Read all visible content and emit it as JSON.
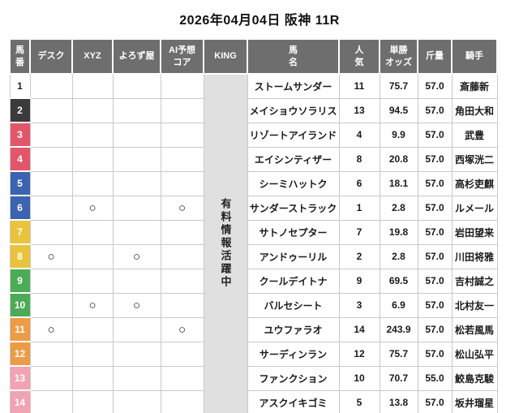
{
  "title": "2026年04月04日 阪神 11R",
  "colors": {
    "header_bg": "#6e6e6e",
    "king_bg": "#e0e0e0",
    "border": "#c9c9c9",
    "bracket": {
      "white": "#ffffff",
      "black": "#3b3b3b",
      "red": "#e2566a",
      "blue": "#3c63b1",
      "yellow": "#e9c33e",
      "green": "#4cab55",
      "orange": "#ec9c47",
      "pink": "#f1a3b2"
    }
  },
  "table": {
    "headers": [
      "馬\n番",
      "デスク",
      "XYZ",
      "よろず屋",
      "AI予想\nコア",
      "KING",
      "馬\n名",
      "人\n気",
      "単勝\nオッズ",
      "斤量",
      "騎手"
    ],
    "king_banner": "有料情報活躍中",
    "rows": [
      {
        "num": "1",
        "bracket": "white",
        "marks": {
          "desk": "",
          "xyz": "",
          "yorozuya": "",
          "ai": ""
        },
        "name": "ストームサンダー",
        "popularity": "11",
        "odds": "75.7",
        "weight": "57.0",
        "jockey": "斎藤新"
      },
      {
        "num": "2",
        "bracket": "black",
        "marks": {
          "desk": "",
          "xyz": "",
          "yorozuya": "",
          "ai": ""
        },
        "name": "メイショウソラリス",
        "popularity": "13",
        "odds": "94.5",
        "weight": "57.0",
        "jockey": "角田大和"
      },
      {
        "num": "3",
        "bracket": "red",
        "marks": {
          "desk": "",
          "xyz": "",
          "yorozuya": "",
          "ai": ""
        },
        "name": "リゾートアイランド",
        "popularity": "4",
        "odds": "9.9",
        "weight": "57.0",
        "jockey": "武豊"
      },
      {
        "num": "4",
        "bracket": "red",
        "marks": {
          "desk": "",
          "xyz": "",
          "yorozuya": "",
          "ai": ""
        },
        "name": "エイシンティザー",
        "popularity": "8",
        "odds": "20.8",
        "weight": "57.0",
        "jockey": "西塚洸二"
      },
      {
        "num": "5",
        "bracket": "blue",
        "marks": {
          "desk": "",
          "xyz": "",
          "yorozuya": "",
          "ai": ""
        },
        "name": "シーミハットク",
        "popularity": "6",
        "odds": "18.1",
        "weight": "57.0",
        "jockey": "高杉吏麒"
      },
      {
        "num": "6",
        "bracket": "blue",
        "marks": {
          "desk": "",
          "xyz": "○",
          "yorozuya": "",
          "ai": "○"
        },
        "name": "サンダーストラック",
        "popularity": "1",
        "odds": "2.8",
        "weight": "57.0",
        "jockey": "ルメール"
      },
      {
        "num": "7",
        "bracket": "yellow",
        "marks": {
          "desk": "",
          "xyz": "",
          "yorozuya": "",
          "ai": ""
        },
        "name": "サトノセプター",
        "popularity": "7",
        "odds": "19.8",
        "weight": "57.0",
        "jockey": "岩田望来"
      },
      {
        "num": "8",
        "bracket": "yellow",
        "marks": {
          "desk": "○",
          "xyz": "",
          "yorozuya": "○",
          "ai": ""
        },
        "name": "アンドゥーリル",
        "popularity": "2",
        "odds": "2.8",
        "weight": "57.0",
        "jockey": "川田将雅"
      },
      {
        "num": "9",
        "bracket": "green",
        "marks": {
          "desk": "",
          "xyz": "",
          "yorozuya": "",
          "ai": ""
        },
        "name": "クールデイトナ",
        "popularity": "9",
        "odds": "69.5",
        "weight": "57.0",
        "jockey": "吉村誠之"
      },
      {
        "num": "10",
        "bracket": "green",
        "marks": {
          "desk": "",
          "xyz": "○",
          "yorozuya": "○",
          "ai": ""
        },
        "name": "バルセシート",
        "popularity": "3",
        "odds": "6.9",
        "weight": "57.0",
        "jockey": "北村友一"
      },
      {
        "num": "11",
        "bracket": "orange",
        "marks": {
          "desk": "○",
          "xyz": "",
          "yorozuya": "",
          "ai": "○"
        },
        "name": "ユウファラオ",
        "popularity": "14",
        "odds": "243.9",
        "weight": "57.0",
        "jockey": "松若風馬"
      },
      {
        "num": "12",
        "bracket": "orange",
        "marks": {
          "desk": "",
          "xyz": "",
          "yorozuya": "",
          "ai": ""
        },
        "name": "サーディンラン",
        "popularity": "12",
        "odds": "75.7",
        "weight": "57.0",
        "jockey": "松山弘平"
      },
      {
        "num": "13",
        "bracket": "pink",
        "marks": {
          "desk": "",
          "xyz": "",
          "yorozuya": "",
          "ai": ""
        },
        "name": "ファンクション",
        "popularity": "10",
        "odds": "70.7",
        "weight": "55.0",
        "jockey": "鮫島克駿"
      },
      {
        "num": "14",
        "bracket": "pink",
        "marks": {
          "desk": "",
          "xyz": "",
          "yorozuya": "",
          "ai": ""
        },
        "name": "アスクイキゴミ",
        "popularity": "5",
        "odds": "13.8",
        "weight": "57.0",
        "jockey": "坂井瑠星"
      }
    ]
  }
}
